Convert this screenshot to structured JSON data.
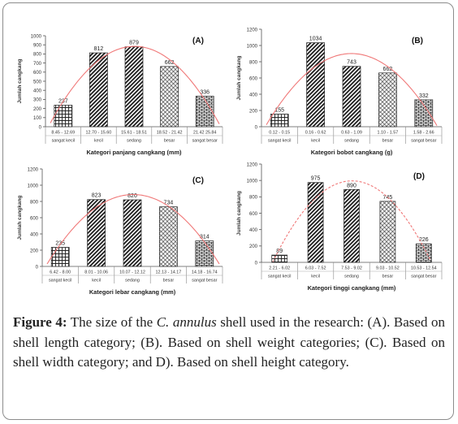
{
  "chart_data": [
    {
      "type": "bar",
      "panel": "(A)",
      "categories": [
        "8.45 - 12.69",
        "12.70 - 15.60",
        "15.61 - 18.51",
        "18.52 - 21.42",
        "21.42 25.84"
      ],
      "class_labels": [
        "sangat kecil",
        "kecil",
        "sedang",
        "besar",
        "sangat besar"
      ],
      "values": [
        237,
        812,
        879,
        662,
        336
      ],
      "ylabel": "Jumlah cangkang",
      "xlabel": "Kategori panjang cangkang (mm)",
      "ylim": [
        0,
        1000
      ],
      "yticks": [
        0,
        100,
        200,
        300,
        400,
        500,
        600,
        700,
        800,
        900,
        1000
      ],
      "patterns": [
        "grid",
        "diagonal",
        "diagonal",
        "diamond",
        "brick"
      ],
      "trend_line_color": "#f07878",
      "grid": false
    },
    {
      "type": "bar",
      "panel": "(B)",
      "categories": [
        "0.12 - 0.15",
        "0.16 - 0.62",
        "0.63 - 1.09",
        "1.10 - 1.57",
        "1.58 - 2.66"
      ],
      "class_labels": [
        "sangat kecil",
        "kecil",
        "sedang",
        "besar",
        "sangat besar"
      ],
      "values": [
        155,
        1034,
        743,
        662,
        332
      ],
      "ylabel": "Jumlah cangkang",
      "xlabel": "Kategori bobot cangkang (g)",
      "ylim": [
        0,
        1200
      ],
      "yticks": [
        0,
        200,
        400,
        600,
        800,
        1000,
        1200
      ],
      "patterns": [
        "grid",
        "diagonal",
        "diagonal",
        "diamond",
        "brick"
      ],
      "trend_line_color": "#f07878",
      "grid": false
    },
    {
      "type": "bar",
      "panel": "(C)",
      "categories": [
        "6.42 - 8.00",
        "8.01 - 10.06",
        "10.07 - 12.12",
        "12.13 - 14.17",
        "14.18 - 16.74"
      ],
      "class_labels": [
        "sangat kecil",
        "kecil",
        "sedang",
        "besar",
        "sangat besar"
      ],
      "values": [
        235,
        823,
        820,
        734,
        314
      ],
      "ylabel": "Jumlah cangkang",
      "xlabel": "Kategori lebar cangkang (mm)",
      "ylim": [
        0,
        1200
      ],
      "yticks": [
        0,
        200,
        400,
        600,
        800,
        1000,
        1200
      ],
      "patterns": [
        "grid",
        "diagonal",
        "diagonal",
        "diamond",
        "brick"
      ],
      "trend_line_color": "#f07878",
      "grid": false
    },
    {
      "type": "bar",
      "panel": "(D)",
      "categories": [
        "2.21 - 6.02",
        "6.03 - 7.52",
        "7.53 - 9.02",
        "9.03 - 10.52",
        "10.53 - 12.54"
      ],
      "class_labels": [
        "sangat kecil",
        "kecil",
        "sedang",
        "besar",
        "sangat besar"
      ],
      "values": [
        89,
        975,
        890,
        745,
        226
      ],
      "ylabel": "Jumlah cangkang",
      "xlabel": "Kategori tinggi cangkang (mm)",
      "ylim": [
        0,
        1200
      ],
      "yticks": [
        0,
        200,
        400,
        600,
        800,
        1000,
        1200
      ],
      "patterns": [
        "grid",
        "diagonal",
        "diagonal",
        "diamond",
        "brick"
      ],
      "trend_line_color": "#f07878",
      "grid": false
    }
  ],
  "caption": {
    "label": "Figure 4:",
    "text_before_species": " The size of the ",
    "species": "C. annulus",
    "text_after_species": " shell used in the research: (A). Based on shell length category; (B). Based on shell weight categories; (C). Based on shell width category; and D). Based on shell height category."
  }
}
